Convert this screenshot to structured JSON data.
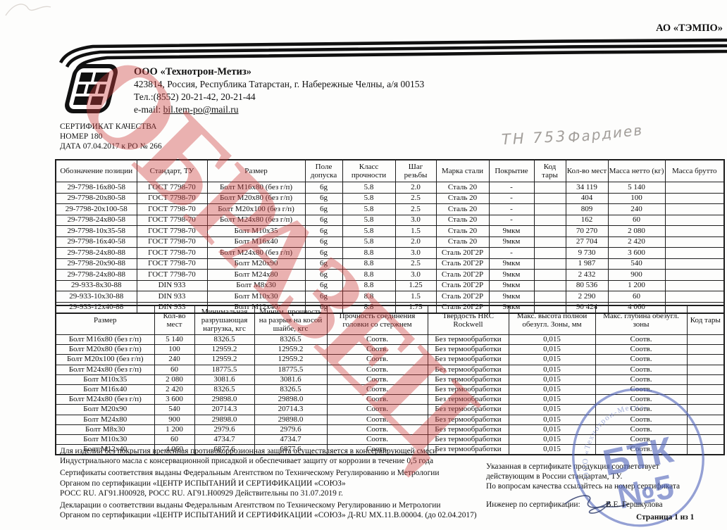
{
  "corner_company": "АО «ТЭМПО»",
  "company": {
    "name": "ООО «Технотрон-Метиз»",
    "address": "423814, Россия, Республика Татарстан,  г. Набережные Челны, а/я 00153",
    "phone": "Тел.:(8552) 20-21-42, 20-21-44",
    "email_label": "e-mail: ",
    "email": "bil.tem-po@mail.ru"
  },
  "certificate": {
    "title": "СЕРТИФИКАТ КАЧЕСТВА",
    "number": "НОМЕР 180",
    "date": "ДАТА 07.04.2017  к РО № 266"
  },
  "handwriting": {
    "part1": "ТН 753",
    "part2": "Фардиев"
  },
  "watermark": "ОБРАЗЕЦ",
  "table1": {
    "headers": [
      "Обозначение позиции",
      "Стандарт, ТУ",
      "Размер",
      "Поле допуска",
      "Класс прочности",
      "Шаг резьбы",
      "Марка стали",
      "Покрытие",
      "Код тары",
      "Кол-во мест",
      "Масса нетто (кг)",
      "Масса брутто"
    ],
    "rows": [
      [
        "29-7798-16х80-58",
        "ГОСТ 7798-70",
        "Болт М16х80 (без г/п)",
        "6g",
        "5.8",
        "2.0",
        "Сталь 20",
        "-",
        "",
        "34 119",
        "5 140",
        ""
      ],
      [
        "29-7798-20х80-58",
        "ГОСТ 7798-70",
        "Болт М20х80 (без г/п)",
        "6g",
        "5.8",
        "2.5",
        "Сталь 20",
        "-",
        "",
        "404",
        "100",
        ""
      ],
      [
        "29-7798-20х100-58",
        "ГОСТ 7798-70",
        "Болт М20х100 (без г/п)",
        "6g",
        "5.8",
        "2.5",
        "Сталь 20",
        "-",
        "",
        "809",
        "240",
        ""
      ],
      [
        "29-7798-24х80-58",
        "ГОСТ 7798-70",
        "Болт М24х80 (без г/п)",
        "6g",
        "5.8",
        "3.0",
        "Сталь 20",
        "-",
        "",
        "162",
        "60",
        ""
      ],
      [
        "29-7798-10х35-58",
        "ГОСТ 7798-70",
        "Болт М10х35",
        "6g",
        "5.8",
        "1.5",
        "Сталь 20",
        "9мкм",
        "",
        "70 270",
        "2 080",
        ""
      ],
      [
        "29-7798-16х40-58",
        "ГОСТ 7798-70",
        "Болт М16х40",
        "6g",
        "5.8",
        "2.0",
        "Сталь 20",
        "9мкм",
        "",
        "27 704",
        "2 420",
        ""
      ],
      [
        "29-7798-24х80-88",
        "ГОСТ 7798-70",
        "Болт М24х80 (без г/п)",
        "6g",
        "8.8",
        "3.0",
        "Сталь 20Г2Р",
        "-",
        "",
        "9 730",
        "3 600",
        ""
      ],
      [
        "29-7798-20х90-88",
        "ГОСТ 7798-70",
        "Болт М20х90",
        "6g",
        "8.8",
        "2.5",
        "Сталь 20Г2Р",
        "9мкм",
        "",
        "1 987",
        "540",
        ""
      ],
      [
        "29-7798-24х80-88",
        "ГОСТ 7798-70",
        "Болт М24х80",
        "6g",
        "8.8",
        "3.0",
        "Сталь 20Г2Р",
        "9мкм",
        "",
        "2 432",
        "900",
        ""
      ],
      [
        "29-933-8х30-88",
        "DIN 933",
        "Болт М8х30",
        "6g",
        "8.8",
        "1.25",
        "Сталь 20Г2Р",
        "9мкм",
        "",
        "80 536",
        "1 200",
        ""
      ],
      [
        "29-933-10х30-88",
        "DIN 933",
        "Болт М10х30",
        "6g",
        "8.8",
        "1.5",
        "Сталь 20Г2Р",
        "9мкм",
        "",
        "2 290",
        "60",
        ""
      ],
      [
        "29-933-12х40-88",
        "DIN 933",
        "Болт М12х40",
        "6g",
        "8.8",
        "1.75",
        "Сталь 20Г2Р",
        "9мкм",
        "",
        "90 424",
        "4 060",
        ""
      ]
    ]
  },
  "table2": {
    "headers": [
      "Размер",
      "Кол-во мест",
      "Минимальная разрушающая нагрузка, кгс",
      "Миним. прочность на разрыв на косой шайбе, кгс",
      "Прочность соединения головки со стержнем",
      "Твердость HRC Rockwell",
      "Макс. высота полной обезугл. Зоны, мм",
      "Макс. глубина обезугл. зоны",
      "Код тары"
    ],
    "rows": [
      [
        "Болт М16х80 (без г/п)",
        "5 140",
        "8326.5",
        "8326.5",
        "Соотв.",
        "Без термообработки",
        "0,015",
        "Соотв.",
        ""
      ],
      [
        "Болт М20х80 (без г/п)",
        "100",
        "12959.2",
        "12959.2",
        "Соотв.",
        "Без термообработки",
        "0,015",
        "Соотв.",
        ""
      ],
      [
        "Болт М20х100 (без г/п)",
        "240",
        "12959.2",
        "12959.2",
        "Соотв.",
        "Без термообработки",
        "0,015",
        "Соотв.",
        ""
      ],
      [
        "Болт М24х80 (без г/п)",
        "60",
        "18775.5",
        "18775.5",
        "Соотв.",
        "Без термообработки",
        "0,015",
        "Соотв.",
        ""
      ],
      [
        "Болт М10х35",
        "2 080",
        "3081.6",
        "3081.6",
        "Соотв.",
        "Без термообработки",
        "0,015",
        "Соотв.",
        ""
      ],
      [
        "Болт М16х40",
        "2 420",
        "8326.5",
        "8326.5",
        "Соотв.",
        "Без термообработки",
        "0,015",
        "Соотв.",
        ""
      ],
      [
        "Болт М24х80 (без г/п)",
        "3 600",
        "29898.0",
        "29898.0",
        "Соотв.",
        "Без термообработки",
        "0,015",
        "Соотв.",
        ""
      ],
      [
        "Болт М20х90",
        "540",
        "20714.3",
        "20714.3",
        "Соотв.",
        "Без термообработки",
        "0,015",
        "Соотв.",
        ""
      ],
      [
        "Болт М24х80",
        "900",
        "29898.0",
        "29898.0",
        "Соотв.",
        "Без термообработки",
        "0,015",
        "Соотв.",
        ""
      ],
      [
        "Болт М8х30",
        "1 200",
        "2979.6",
        "2979.6",
        "Соотв.",
        "Без термообработки",
        "0,015",
        "Соотв.",
        ""
      ],
      [
        "Болт М10х30",
        "60",
        "4734.7",
        "4734.7",
        "Соотв.",
        "Без термообработки",
        "0,015",
        "Соотв.",
        ""
      ],
      [
        "Болт М12х40",
        "4 060",
        "6877.6",
        "6877.6",
        "Соотв.",
        "Без термообработки",
        "0,015",
        "Соотв.",
        ""
      ]
    ]
  },
  "notes": [
    "Для изделий без покрытия временная противокоррозионная защита осуществляется в консервирующей смеси",
    "Индустриального масла с консервационной присадкой и обеспечивает защиту от коррозии в течение 0,5 года",
    "Сертификаты соответствия выданы Федеральным Агентством по Техническому Регулированию и Метрологии",
    "Органом по сертификации «ЦЕНТР ИСПЫТАНИЙ И СЕРТИФИКАЦИИ «СОЮЗ»",
    "РОСС RU. АГ91.Н00928,  РОСС RU. АГ91.Н00929 Действительны по 31.07.2019 г.",
    "Декларации о соответствии выданы Федеральным Агентством по Техническому Регулированию и Метрологии",
    "Органом по сертификации «ЦЕНТР ИСПЫТАНИЙ И СЕРТИФИКАЦИИ «СОЮЗ» Д-RU МХ.11.В.00004. (до 02.04.2017)"
  ],
  "right_notes": [
    "Указанная в сертификате продукция соответствует",
    "действующим в России стандартам, ТУ.",
    "По вопросам качества ссылайтесь на номер сертификата"
  ],
  "signature": {
    "label": "Инженер по сертификации:",
    "name": "В.Е. Гершкулова"
  },
  "page_number": "Страница 1 из 1",
  "stamp": {
    "arc": "ООО «Технотрон-Метиз»",
    "line1": "БТК",
    "line2": "№5"
  },
  "colors": {
    "watermark": "#cc3e3e",
    "stamp": "#5468bd",
    "pencil": "#a39f9b",
    "ink": "#33406e"
  }
}
